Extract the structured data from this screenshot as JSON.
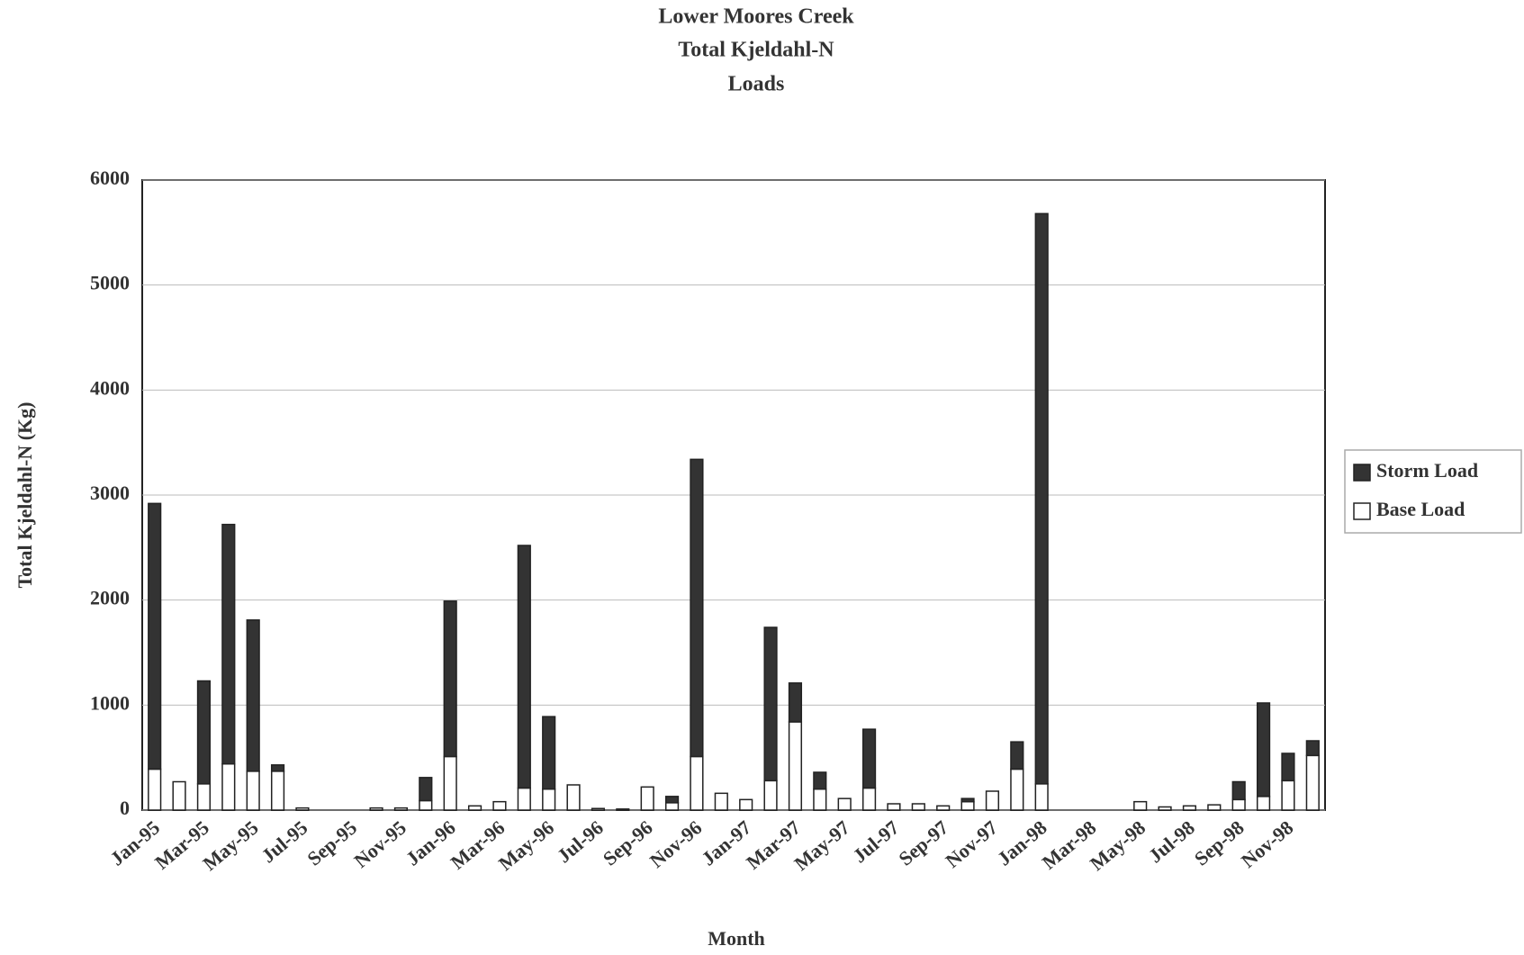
{
  "chart_data": {
    "type": "stacked_bar",
    "title": [
      "Lower Moores Creek",
      "Total Kjeldahl-N",
      "Loads"
    ],
    "x_label": "Month",
    "y_label": "Total Kjeldahl-N (Kg)",
    "categories": [
      "Jan-95",
      null,
      "Mar-95",
      null,
      "May-95",
      null,
      "Jul-95",
      null,
      "Sep-95",
      null,
      "Nov-95",
      null,
      "Jan-96",
      null,
      "Mar-96",
      null,
      "May-96",
      null,
      "Jul-96",
      null,
      "Sep-96",
      null,
      "Nov-96",
      null,
      "Jan-97",
      null,
      "Mar-97",
      null,
      "May-97",
      null,
      "Jul-97",
      null,
      "Sep-97",
      null,
      "Nov-97",
      null,
      "Jan-98",
      null,
      "Mar-98",
      null,
      "May-98",
      null,
      "Jul-98",
      null,
      "Sep-98",
      null,
      "Nov-98",
      null
    ],
    "series": [
      {
        "name": "Base Load",
        "color": "#ffffff",
        "values": [
          390,
          270,
          250,
          440,
          370,
          370,
          20,
          0,
          0,
          20,
          20,
          90,
          510,
          40,
          80,
          210,
          200,
          240,
          15,
          10,
          220,
          70,
          510,
          160,
          100,
          280,
          840,
          200,
          110,
          210,
          60,
          60,
          40,
          80,
          180,
          390,
          250,
          0,
          0,
          0,
          80,
          30,
          40,
          50,
          100,
          130,
          280,
          520
        ]
      },
      {
        "name": "Storm Load",
        "color": "#333333",
        "values": [
          2530,
          0,
          980,
          2280,
          1440,
          60,
          0,
          0,
          0,
          0,
          0,
          220,
          1480,
          0,
          0,
          2310,
          690,
          0,
          0,
          0,
          0,
          60,
          2830,
          0,
          0,
          1460,
          370,
          160,
          0,
          560,
          0,
          0,
          0,
          30,
          0,
          260,
          5430,
          0,
          0,
          0,
          0,
          0,
          0,
          0,
          170,
          890,
          260,
          140
        ]
      }
    ],
    "ylim": [
      0,
      6000
    ],
    "yticks": [
      0,
      1000,
      2000,
      3000,
      4000,
      5000,
      6000
    ],
    "grid": true,
    "legend": "right"
  }
}
